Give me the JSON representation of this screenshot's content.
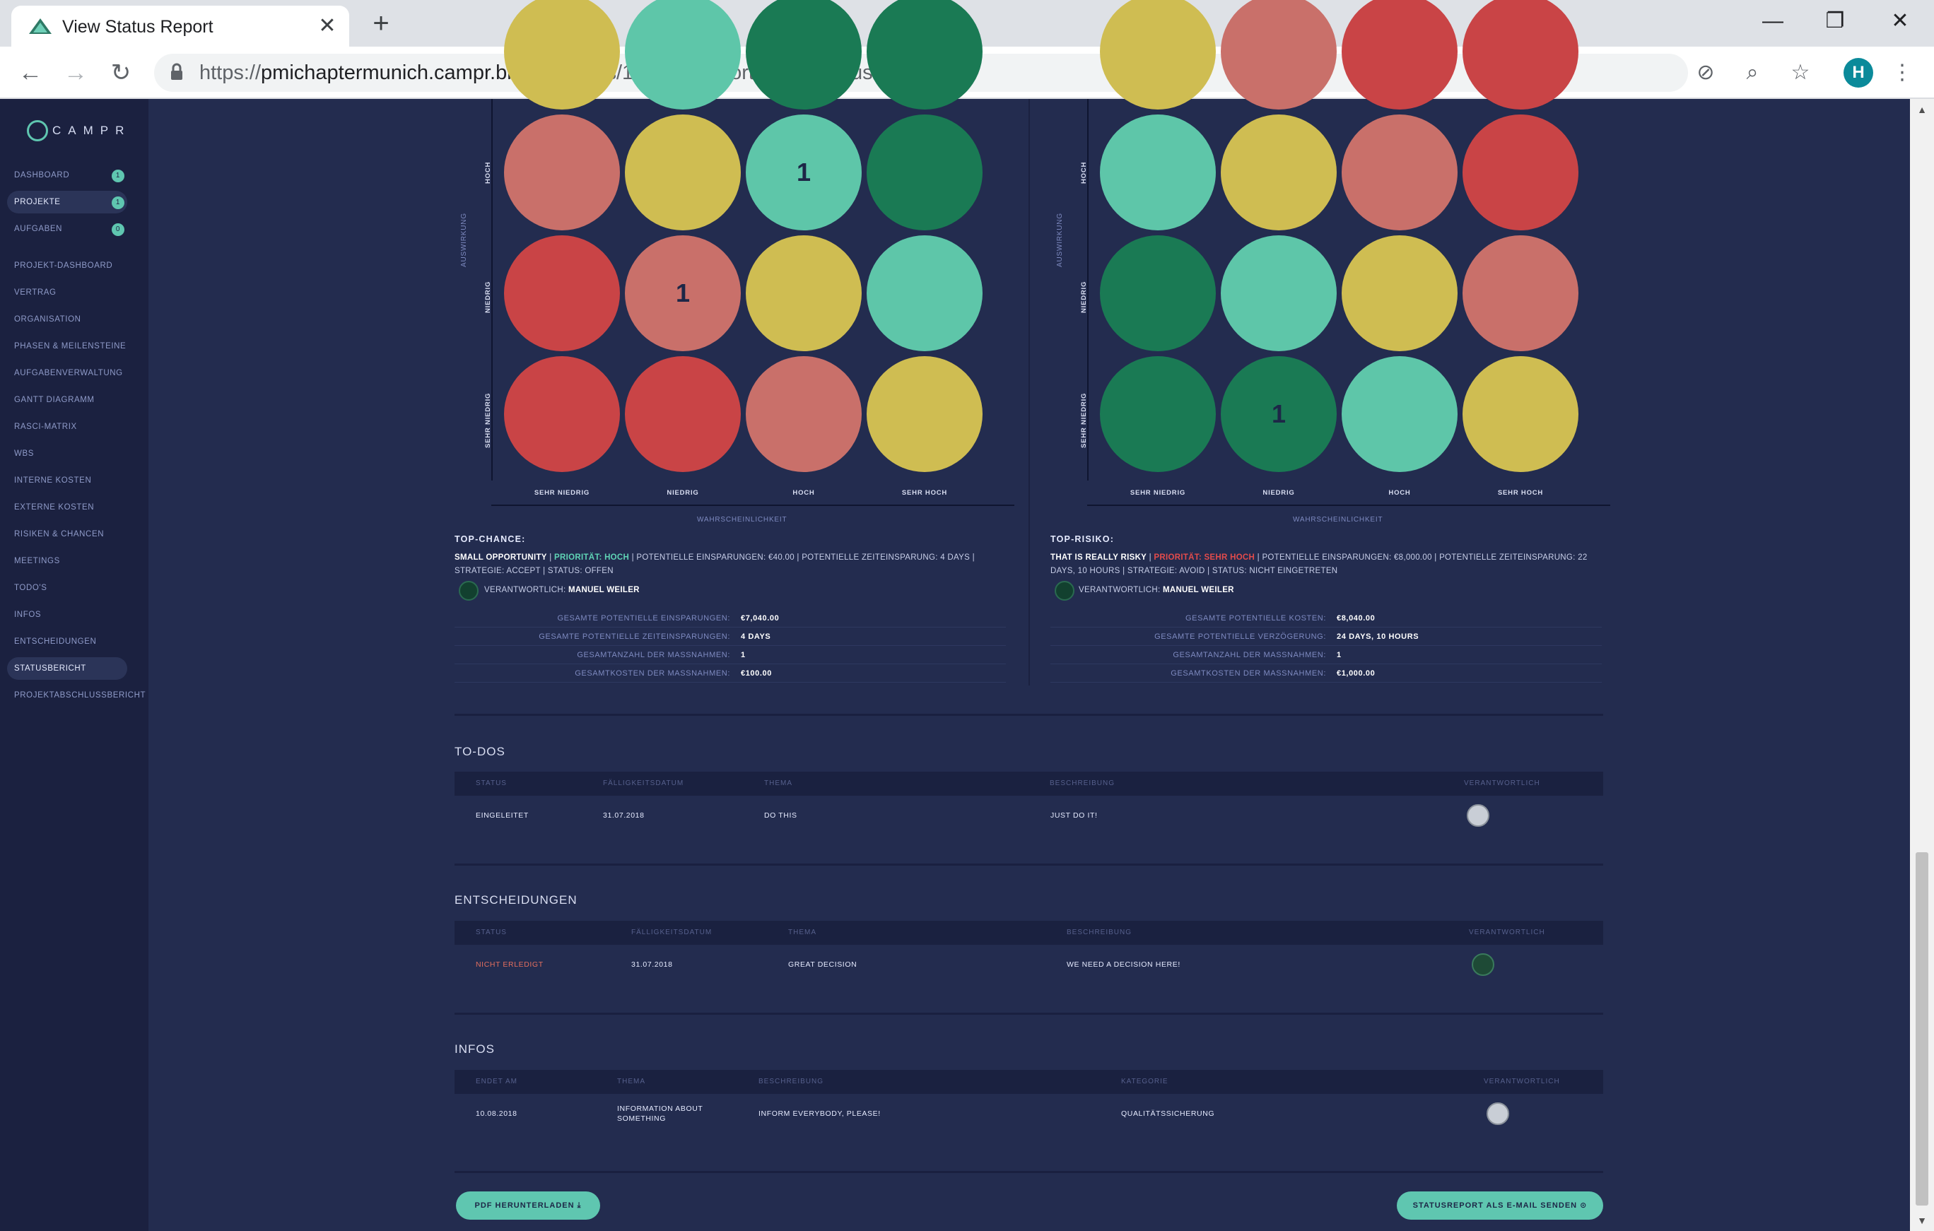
{
  "browser": {
    "tab_title": "View Status Report",
    "url_host": "pmichaptermunich.campr.biz",
    "url_scheme": "https://",
    "url_path": "/#/projects/1/status-reports/view-status-report/4",
    "profile_initial": "H"
  },
  "sidebar": {
    "logo_text": "CAMPR",
    "top_items": [
      {
        "label": "DASHBOARD",
        "badge": "1"
      },
      {
        "label": "PROJEKTE",
        "badge": "1"
      },
      {
        "label": "AUFGABEN",
        "badge": "0"
      }
    ],
    "project_items": [
      "PROJEKT-DASHBOARD",
      "VERTRAG",
      "ORGANISATION",
      "PHASEN & MEILENSTEINE",
      "AUFGABENVERWALTUNG",
      "GANTT DIAGRAMM",
      "RASCI-MATRIX",
      "WBS",
      "INTERNE KOSTEN",
      "EXTERNE KOSTEN",
      "RISIKEN & CHANCEN",
      "MEETINGS",
      "TODO'S",
      "INFOS",
      "ENTSCHEIDUNGEN",
      "STATUSBERICHT",
      "PROJEKTABSCHLUSSBERICHT"
    ],
    "active_item": "STATUSBERICHT"
  },
  "opportunity_matrix": {
    "y_axis_label": "AUSWIRKUNG",
    "x_axis_label": "WAHRSCHEINLICHKEIT",
    "row_labels": [
      "HOCH",
      "NIEDRIG",
      "SEHR NIEDRIG"
    ],
    "col_labels": [
      "SEHR NIEDRIG",
      "NIEDRIG",
      "HOCH",
      "SEHR HOCH"
    ],
    "top_partial_colors": [
      "#cfbd52",
      "#5ec6a9",
      "#1a7a54",
      "#1a7a54"
    ],
    "rows": [
      [
        {
          "color": "#c9706a",
          "count": ""
        },
        {
          "color": "#cfbd52",
          "count": ""
        },
        {
          "color": "#5ec6a9",
          "count": "1"
        },
        {
          "color": "#1a7a54",
          "count": ""
        }
      ],
      [
        {
          "color": "#c94446",
          "count": ""
        },
        {
          "color": "#c9706a",
          "count": "1"
        },
        {
          "color": "#cfbd52",
          "count": ""
        },
        {
          "color": "#5ec6a9",
          "count": ""
        }
      ],
      [
        {
          "color": "#c94446",
          "count": ""
        },
        {
          "color": "#c94446",
          "count": ""
        },
        {
          "color": "#c9706a",
          "count": ""
        },
        {
          "color": "#cfbd52",
          "count": ""
        }
      ]
    ]
  },
  "risk_matrix": {
    "y_axis_label": "AUSWIRKUNG",
    "x_axis_label": "WAHRSCHEINLICHKEIT",
    "row_labels": [
      "HOCH",
      "NIEDRIG",
      "SEHR NIEDRIG"
    ],
    "col_labels": [
      "SEHR NIEDRIG",
      "NIEDRIG",
      "HOCH",
      "SEHR HOCH"
    ],
    "top_partial_colors": [
      "#cfbd52",
      "#c9706a",
      "#c94446",
      "#c94446"
    ],
    "rows": [
      [
        {
          "color": "#5ec6a9",
          "count": ""
        },
        {
          "color": "#cfbd52",
          "count": ""
        },
        {
          "color": "#c9706a",
          "count": ""
        },
        {
          "color": "#c94446",
          "count": ""
        }
      ],
      [
        {
          "color": "#1a7a54",
          "count": ""
        },
        {
          "color": "#5ec6a9",
          "count": ""
        },
        {
          "color": "#cfbd52",
          "count": ""
        },
        {
          "color": "#c9706a",
          "count": ""
        }
      ],
      [
        {
          "color": "#1a7a54",
          "count": ""
        },
        {
          "color": "#1a7a54",
          "count": "1"
        },
        {
          "color": "#5ec6a9",
          "count": ""
        },
        {
          "color": "#cfbd52",
          "count": ""
        }
      ]
    ]
  },
  "top_chance": {
    "title": "TOP-CHANCE:",
    "name": "SMALL OPPORTUNITY",
    "priority": "PRIORITÄT: HOCH",
    "details": "| POTENTIELLE EINSPARUNGEN: €40.00 | POTENTIELLE ZEITEINSPARUNG: 4 DAYS | STRATEGIE: ACCEPT | STATUS: OFFEN",
    "owner_label": "VERANTWORTLICH:",
    "owner_name": "MANUEL WEILER",
    "summary": [
      {
        "label": "GESAMTE POTENTIELLE EINSPARUNGEN:",
        "value": "€7,040.00"
      },
      {
        "label": "GESAMTE POTENTIELLE ZEITEINSPARUNGEN:",
        "value": "4 DAYS"
      },
      {
        "label": "GESAMTANZAHL DER MASSNAHMEN:",
        "value": "1"
      },
      {
        "label": "GESAMTKOSTEN DER MASSNAHMEN:",
        "value": "€100.00"
      }
    ]
  },
  "top_risk": {
    "title": "TOP-RISIKO:",
    "name": "THAT IS REALLY RISKY",
    "priority": "PRIORITÄT: SEHR HOCH",
    "details": "| POTENTIELLE EINSPARUNGEN: €8,000.00 | POTENTIELLE ZEITEINSPARUNG: 22 DAYS, 10 HOURS | STRATEGIE: AVOID | STATUS: NICHT EINGETRETEN",
    "owner_label": "VERANTWORTLICH:",
    "owner_name": "MANUEL WEILER",
    "summary": [
      {
        "label": "GESAMTE POTENTIELLE KOSTEN:",
        "value": "€8,040.00"
      },
      {
        "label": "GESAMTE POTENTIELLE VERZÖGERUNG:",
        "value": "24 DAYS, 10 HOURS"
      },
      {
        "label": "GESAMTANZAHL DER MASSNAHMEN:",
        "value": "1"
      },
      {
        "label": "GESAMTKOSTEN DER MASSNAHMEN:",
        "value": "€1,000.00"
      }
    ]
  },
  "todos": {
    "title": "TO-DOS",
    "headers": [
      "STATUS",
      "FÄLLIGKEITSDATUM",
      "THEMA",
      "BESCHREIBUNG",
      "VERANTWORTLICH"
    ],
    "row": {
      "status": "EINGELEITET",
      "due": "31.07.2018",
      "topic": "DO THIS",
      "description": "JUST DO IT!"
    }
  },
  "decisions": {
    "title": "ENTSCHEIDUNGEN",
    "headers": [
      "STATUS",
      "FÄLLIGKEITSDATUM",
      "THEMA",
      "BESCHREIBUNG",
      "VERANTWORTLICH"
    ],
    "row": {
      "status": "NICHT ERLEDIGT",
      "due": "31.07.2018",
      "topic": "GREAT DECISION",
      "description": "WE NEED A DECISION HERE!"
    }
  },
  "infos": {
    "title": "INFOS",
    "headers": [
      "ENDET AM",
      "THEMA",
      "BESCHREIBUNG",
      "KATEGORIE",
      "VERANTWORTLICH"
    ],
    "row": {
      "ends": "10.08.2018",
      "topic_line1": "INFORMATION ABOUT",
      "topic_line2": "SOMETHING",
      "description": "INFORM EVERYBODY, PLEASE!",
      "category": "QUALITÄTSSICHERUNG"
    }
  },
  "actions": {
    "pdf_button": "PDF HERUNTERLADEN ⤓",
    "email_button": "STATUSREPORT ALS E-MAIL SENDEN ⊙"
  }
}
